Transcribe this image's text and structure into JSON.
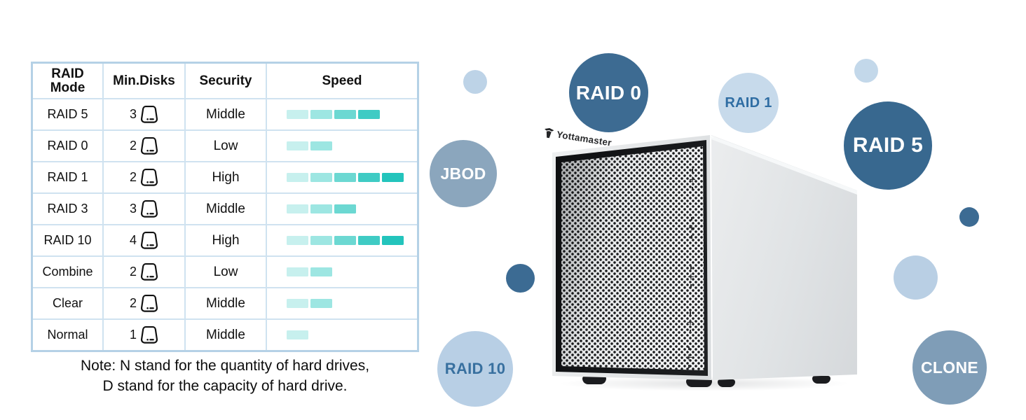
{
  "table": {
    "headers": [
      "RAID Mode",
      "Min.Disks",
      "Security",
      "Speed"
    ],
    "rows": [
      {
        "mode": "RAID 5",
        "min_disks": "3",
        "security": "Middle",
        "speed_level": 4
      },
      {
        "mode": "RAID 0",
        "min_disks": "2",
        "security": "Low",
        "speed_level": 2
      },
      {
        "mode": "RAID 1",
        "min_disks": "2",
        "security": "High",
        "speed_level": 5
      },
      {
        "mode": "RAID 3",
        "min_disks": "3",
        "security": "Middle",
        "speed_level": 3
      },
      {
        "mode": "RAID 10",
        "min_disks": "4",
        "security": "High",
        "speed_level": 5
      },
      {
        "mode": "Combine",
        "min_disks": "2",
        "security": "Low",
        "speed_level": 2
      },
      {
        "mode": "Clear",
        "min_disks": "2",
        "security": "Middle",
        "speed_level": 2
      },
      {
        "mode": "Normal",
        "min_disks": "1",
        "security": "Middle",
        "speed_level": 1
      }
    ],
    "speed_colors": [
      "#c7f0ee",
      "#9de6e2",
      "#6cd8d2",
      "#3fcbc4",
      "#23c4bc"
    ],
    "border_color": "#b5d1e6"
  },
  "note": {
    "line1": "Note: N stand for the quantity of hard drives,",
    "line2": "D stand for the capacity of hard drive."
  },
  "bubbles": {
    "raid0": {
      "label": "RAID 0",
      "bg": "#3d6b92",
      "fg": "#ffffff"
    },
    "raid1": {
      "label": "RAID 1",
      "bg": "#c7daeb",
      "fg": "#2f6da3"
    },
    "raid5": {
      "label": "RAID 5",
      "bg": "#38688f",
      "fg": "#ffffff"
    },
    "jbod": {
      "label": "JBOD",
      "bg": "#8ba6bd",
      "fg": "#ffffff"
    },
    "raid10": {
      "label": "RAID 10",
      "bg": "#b8cfe5",
      "fg": "#38709f"
    },
    "clone": {
      "label": "CLONE",
      "bg": "#7f9db7",
      "fg": "#ffffff"
    }
  },
  "decor": {
    "dot_dark": "#3c6b93",
    "dot_light": "#bdd3e7"
  },
  "product": {
    "brand": "Yottamaster"
  }
}
